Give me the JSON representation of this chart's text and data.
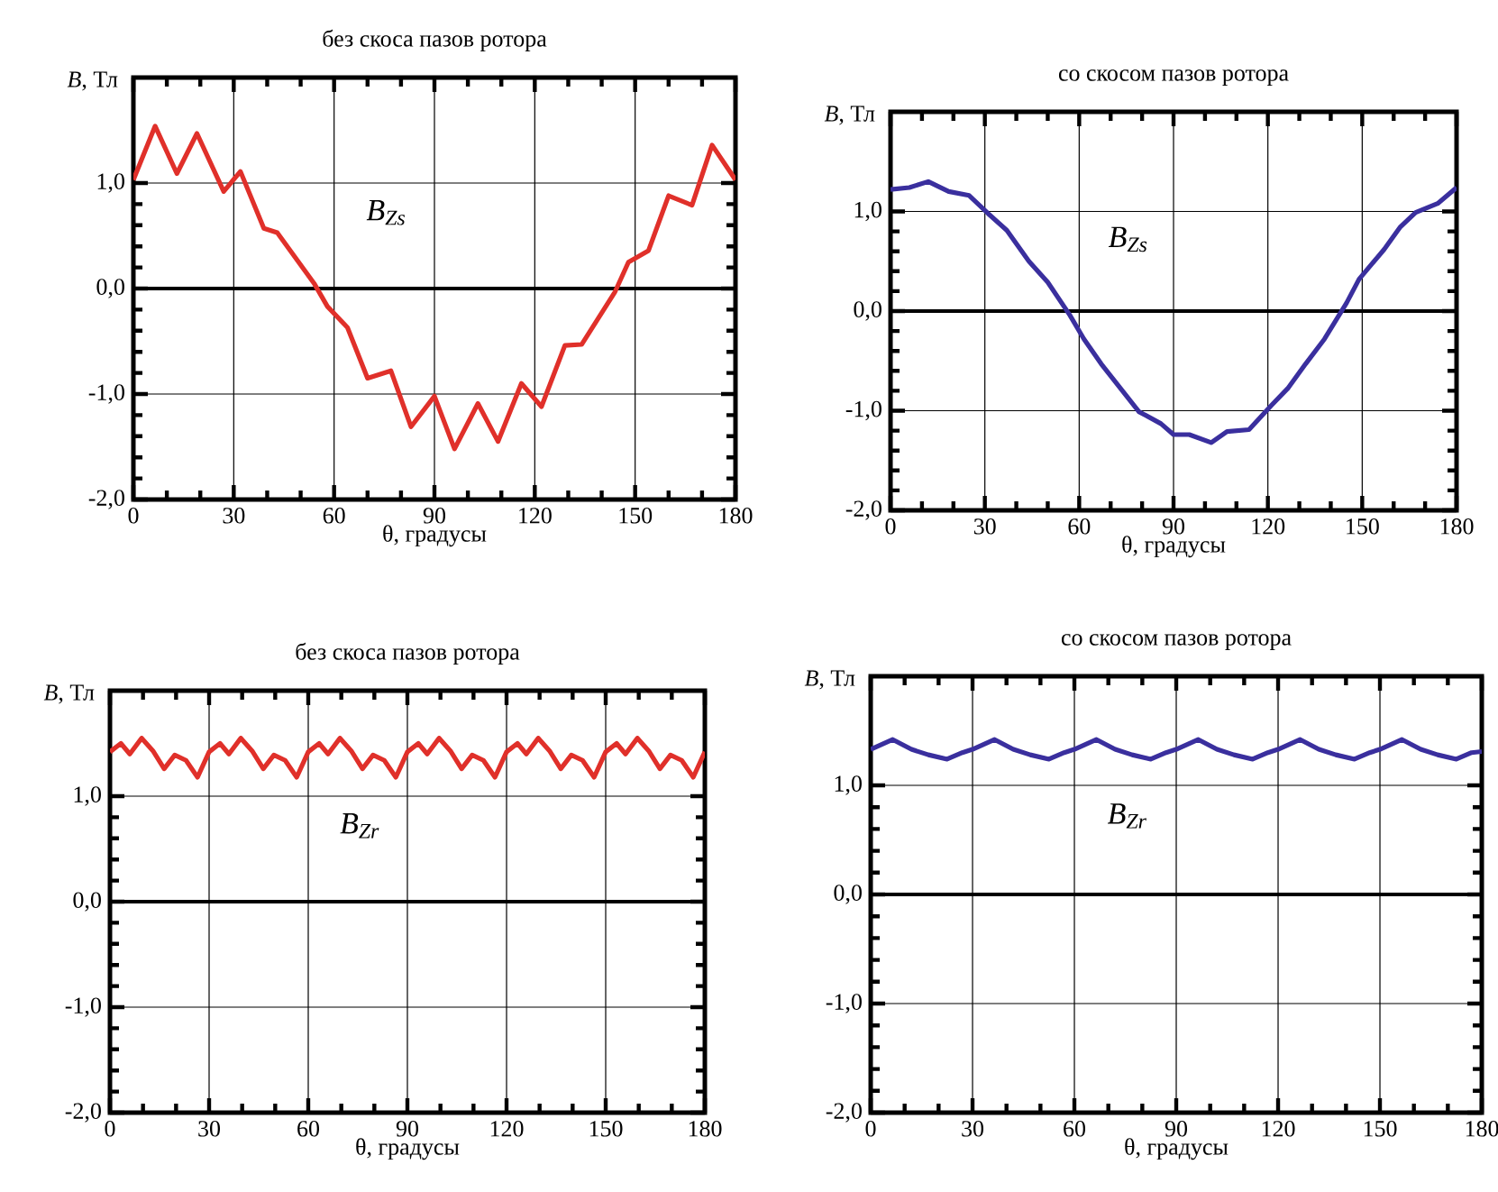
{
  "chart_data": [
    {
      "type": "line",
      "title": "без скоса пазов ротора",
      "xlabel": "θ, градусы",
      "ylabel": "*B*, Тл",
      "annotations": [
        "B$_{Zs}$"
      ],
      "xlim": [
        0,
        180
      ],
      "ylim": [
        -2,
        2
      ],
      "xticks": [
        0,
        30,
        60,
        90,
        120,
        150,
        180
      ],
      "yticks": [
        {
          "value": -2,
          "label": "-2,0"
        },
        {
          "value": -1,
          "label": "-1,0"
        },
        {
          "value": 0,
          "label": "0,0"
        },
        {
          "value": 1,
          "label": "1,0"
        }
      ],
      "grid": true,
      "ref_lines": [
        {
          "axis": "y",
          "value": 0,
          "color": "#000000"
        }
      ],
      "x": [
        0,
        6.5,
        13,
        19,
        27,
        32,
        39,
        43,
        54,
        58,
        64,
        70,
        77,
        83,
        90,
        96,
        103,
        109,
        116,
        122,
        129,
        134,
        144,
        148,
        154,
        160,
        167,
        173,
        180
      ],
      "series": [
        {
          "color": "#e0302a",
          "values": [
            1.03,
            1.54,
            1.09,
            1.47,
            0.92,
            1.11,
            0.57,
            0.53,
            0.05,
            -0.17,
            -0.37,
            -0.85,
            -0.78,
            -1.31,
            -1.02,
            -1.52,
            -1.09,
            -1.45,
            -0.9,
            -1.12,
            -0.54,
            -0.53,
            -0.03,
            0.25,
            0.36,
            0.88,
            0.79,
            1.36,
            1.03
          ]
        }
      ]
    },
    {
      "type": "line",
      "title": "со скосом пазов ротора",
      "xlabel": "θ, градусы",
      "ylabel": "*B*, Тл",
      "annotations": [
        "B$_{Zs}$"
      ],
      "xlim": [
        0,
        180
      ],
      "ylim": [
        -2,
        2
      ],
      "xticks": [
        0,
        30,
        60,
        90,
        120,
        150,
        180
      ],
      "yticks": [
        {
          "value": -2,
          "label": "-2,0"
        },
        {
          "value": -1,
          "label": "-1,0"
        },
        {
          "value": 0,
          "label": "0,0"
        },
        {
          "value": 1,
          "label": "1,0"
        }
      ],
      "grid": true,
      "ref_lines": [
        {
          "axis": "y",
          "value": 0,
          "color": "#000000"
        }
      ],
      "x": [
        0,
        6,
        12,
        18.5,
        25,
        31,
        37,
        44,
        50,
        57,
        61.5,
        67,
        73,
        79,
        86,
        90,
        95,
        102,
        107,
        114,
        121,
        126.5,
        132,
        138,
        145,
        149,
        157,
        162,
        167,
        174,
        180
      ],
      "series": [
        {
          "color": "#3a2f9e",
          "values": [
            1.22,
            1.24,
            1.3,
            1.2,
            1.16,
            0.98,
            0.81,
            0.5,
            0.29,
            -0.04,
            -0.28,
            -0.53,
            -0.77,
            -1.01,
            -1.13,
            -1.24,
            -1.24,
            -1.32,
            -1.21,
            -1.19,
            -0.95,
            -0.77,
            -0.53,
            -0.28,
            0.08,
            0.32,
            0.62,
            0.84,
            0.99,
            1.08,
            1.24
          ]
        }
      ]
    },
    {
      "type": "line",
      "title": "без скоса пазов ротора",
      "xlabel": "θ, градусы",
      "ylabel": "*B*, Тл",
      "annotations": [
        "B$_{Zr}$"
      ],
      "xlim": [
        0,
        180
      ],
      "ylim": [
        -2,
        2
      ],
      "xticks": [
        0,
        30,
        60,
        90,
        120,
        150,
        180
      ],
      "yticks": [
        {
          "value": -2,
          "label": "-2,0"
        },
        {
          "value": -1,
          "label": "-1,0"
        },
        {
          "value": 0,
          "label": "0,0"
        },
        {
          "value": 1,
          "label": "1,0"
        }
      ],
      "grid": true,
      "ref_lines": [
        {
          "axis": "y",
          "value": 0,
          "color": "#000000"
        }
      ],
      "x": [
        0,
        3.3,
        6,
        9.6,
        13,
        16.4,
        19.6,
        23,
        26.5,
        30,
        33.3,
        36,
        39.6,
        43,
        46.4,
        49.6,
        53,
        56.5,
        60,
        63.3,
        66,
        69.6,
        73,
        76.4,
        79.6,
        83,
        86.5,
        90,
        93.3,
        96,
        99.6,
        103,
        106.4,
        109.6,
        113,
        116.5,
        120,
        123.3,
        126,
        129.6,
        133,
        136.4,
        139.6,
        143,
        146.5,
        150,
        153.3,
        156,
        159.6,
        163,
        166.4,
        169.6,
        173,
        176.5,
        180
      ],
      "series": [
        {
          "color": "#e0302a",
          "values": [
            1.42,
            1.5,
            1.4,
            1.55,
            1.43,
            1.26,
            1.39,
            1.34,
            1.18,
            1.42,
            1.5,
            1.4,
            1.55,
            1.43,
            1.26,
            1.39,
            1.34,
            1.18,
            1.42,
            1.5,
            1.4,
            1.55,
            1.43,
            1.26,
            1.39,
            1.34,
            1.18,
            1.42,
            1.5,
            1.4,
            1.55,
            1.43,
            1.26,
            1.39,
            1.34,
            1.18,
            1.42,
            1.5,
            1.4,
            1.55,
            1.43,
            1.26,
            1.39,
            1.34,
            1.18,
            1.42,
            1.5,
            1.4,
            1.55,
            1.43,
            1.26,
            1.39,
            1.34,
            1.18,
            1.42
          ]
        }
      ]
    },
    {
      "type": "line",
      "title": "со скосом пазов ротора",
      "xlabel": "θ, градусы",
      "ylabel": "*B*, Тл",
      "annotations": [
        "B$_{Zr}$"
      ],
      "xlim": [
        0,
        180
      ],
      "ylim": [
        -2,
        2
      ],
      "xticks": [
        0,
        30,
        60,
        90,
        120,
        150,
        180
      ],
      "yticks": [
        {
          "value": -2,
          "label": "-2,0"
        },
        {
          "value": -1,
          "label": "-1,0"
        },
        {
          "value": 0,
          "label": "0,0"
        },
        {
          "value": 1,
          "label": "1,0"
        }
      ],
      "grid": true,
      "ref_lines": [
        {
          "axis": "y",
          "value": 0,
          "color": "#000000"
        }
      ],
      "x": [
        0,
        6.5,
        12,
        17,
        22.5,
        27,
        30,
        36.5,
        42,
        47,
        52.5,
        57,
        60,
        66.5,
        72,
        77,
        82.5,
        87,
        90,
        96.5,
        102,
        107,
        112.5,
        117,
        120,
        126.5,
        132,
        137,
        142.5,
        147,
        150,
        156.5,
        162,
        167,
        172.5,
        177,
        180
      ],
      "series": [
        {
          "color": "#3a2f9e",
          "values": [
            1.33,
            1.42,
            1.33,
            1.28,
            1.24,
            1.3,
            1.33,
            1.42,
            1.33,
            1.28,
            1.24,
            1.3,
            1.33,
            1.42,
            1.33,
            1.28,
            1.24,
            1.3,
            1.33,
            1.42,
            1.33,
            1.28,
            1.24,
            1.3,
            1.33,
            1.42,
            1.33,
            1.28,
            1.24,
            1.3,
            1.33,
            1.42,
            1.33,
            1.28,
            1.24,
            1.3,
            1.31
          ]
        }
      ]
    }
  ]
}
